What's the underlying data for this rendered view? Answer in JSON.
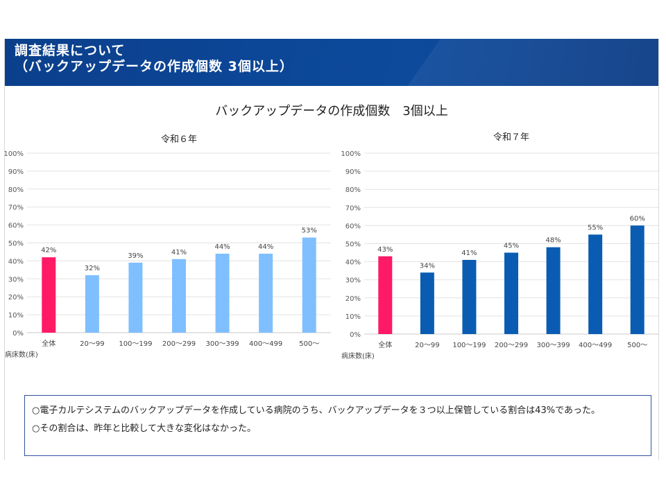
{
  "header": {
    "title_line1": "調査結果について",
    "title_line2": "（バックアップデータの作成個数 3個以上）"
  },
  "main_title": "バックアップデータの作成個数　3個以上",
  "notes": [
    "○電子カルテシステムのバックアップデータを作成している病院のうち、バックアップデータを３つ以上保管している割合は43%であった。",
    "○その割合は、昨年と比較して大きな変化はなかった。"
  ],
  "colors": {
    "header_bg": "#0d4a9c",
    "highlight": "#ff1a66",
    "r6_bar": "#7fbfff",
    "r7_bar": "#0a5cb3",
    "note_border": "#2f4f9e"
  },
  "chart_data": [
    {
      "type": "bar",
      "title": "令和６年",
      "xlabel": "病床数(床)",
      "ylabel": "",
      "ylim": [
        0,
        100
      ],
      "yticks": [
        "0%",
        "10%",
        "20%",
        "30%",
        "40%",
        "50%",
        "60%",
        "70%",
        "80%",
        "90%",
        "100%"
      ],
      "categories": [
        "全体",
        "20〜99",
        "100〜199",
        "200〜299",
        "300〜399",
        "400〜499",
        "500〜"
      ],
      "values": [
        42,
        32,
        39,
        41,
        44,
        44,
        53
      ],
      "data_labels": [
        "42%",
        "32%",
        "39%",
        "41%",
        "44%",
        "44%",
        "53%"
      ],
      "grid": true
    },
    {
      "type": "bar",
      "title": "令和７年",
      "xlabel": "病床数(床)",
      "ylabel": "",
      "ylim": [
        0,
        100
      ],
      "yticks": [
        "0%",
        "10%",
        "20%",
        "30%",
        "40%",
        "50%",
        "60%",
        "70%",
        "80%",
        "90%",
        "100%"
      ],
      "categories": [
        "全体",
        "20〜99",
        "100〜199",
        "200〜299",
        "300〜399",
        "400〜499",
        "500〜"
      ],
      "values": [
        43,
        34,
        41,
        45,
        48,
        55,
        60
      ],
      "data_labels": [
        "43%",
        "34%",
        "41%",
        "45%",
        "48%",
        "55%",
        "60%"
      ],
      "grid": true
    }
  ]
}
